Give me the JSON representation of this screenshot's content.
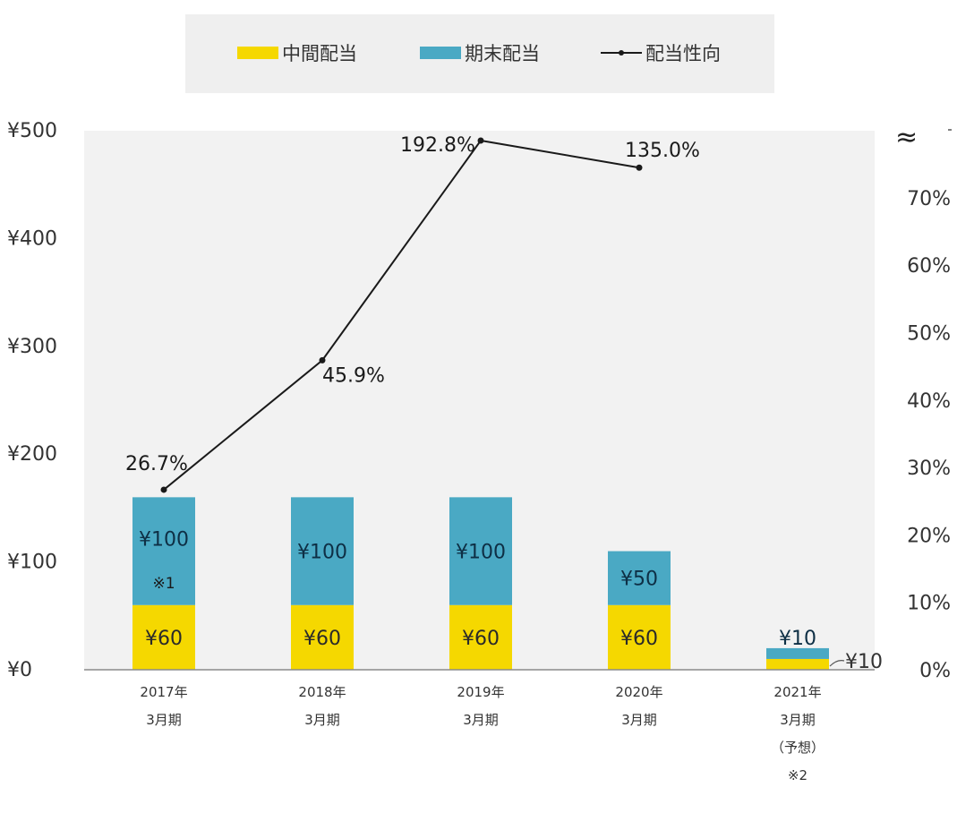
{
  "chart_data": {
    "type": "bar",
    "stacked": true,
    "categories": [
      [
        "2017年",
        "3月期"
      ],
      [
        "2018年",
        "3月期"
      ],
      [
        "2019年",
        "3月期"
      ],
      [
        "2020年",
        "3月期"
      ],
      [
        "2021年",
        "3月期",
        "（予想）",
        "※2"
      ]
    ],
    "series": [
      {
        "name": "中間配当",
        "color": "#f5d800",
        "values": [
          60,
          60,
          60,
          60,
          10
        ],
        "labels": [
          "¥60",
          "¥60",
          "¥60",
          "¥60",
          "¥10"
        ]
      },
      {
        "name": "期末配当",
        "color": "#4aa9c4",
        "values": [
          100,
          100,
          100,
          50,
          10
        ],
        "labels": [
          "¥100",
          "¥100",
          "¥100",
          "¥50",
          "¥10"
        ]
      }
    ],
    "line_series": {
      "name": "配当性向",
      "color": "#1a1a1a",
      "values": [
        26.7,
        45.9,
        192.8,
        135.0,
        null
      ],
      "labels": [
        "26.7%",
        "45.9%",
        "192.8%",
        "135.0%",
        ""
      ],
      "axis": "right",
      "axis_break": true
    },
    "annotations": [
      "※1"
    ],
    "left_axis": {
      "ticks": [
        "¥0",
        "¥100",
        "¥200",
        "¥300",
        "¥400",
        "¥500"
      ],
      "ylim": [
        0,
        500
      ]
    },
    "right_axis": {
      "ticks": [
        "0%",
        "10%",
        "20%",
        "30%",
        "40%",
        "50%",
        "60%",
        "70%"
      ],
      "ylim": [
        0,
        80
      ],
      "break_symbol": "≈"
    },
    "legend": {
      "position": "top",
      "entries": [
        "中間配当",
        "期末配当",
        "配当性向"
      ]
    },
    "grid": false
  }
}
